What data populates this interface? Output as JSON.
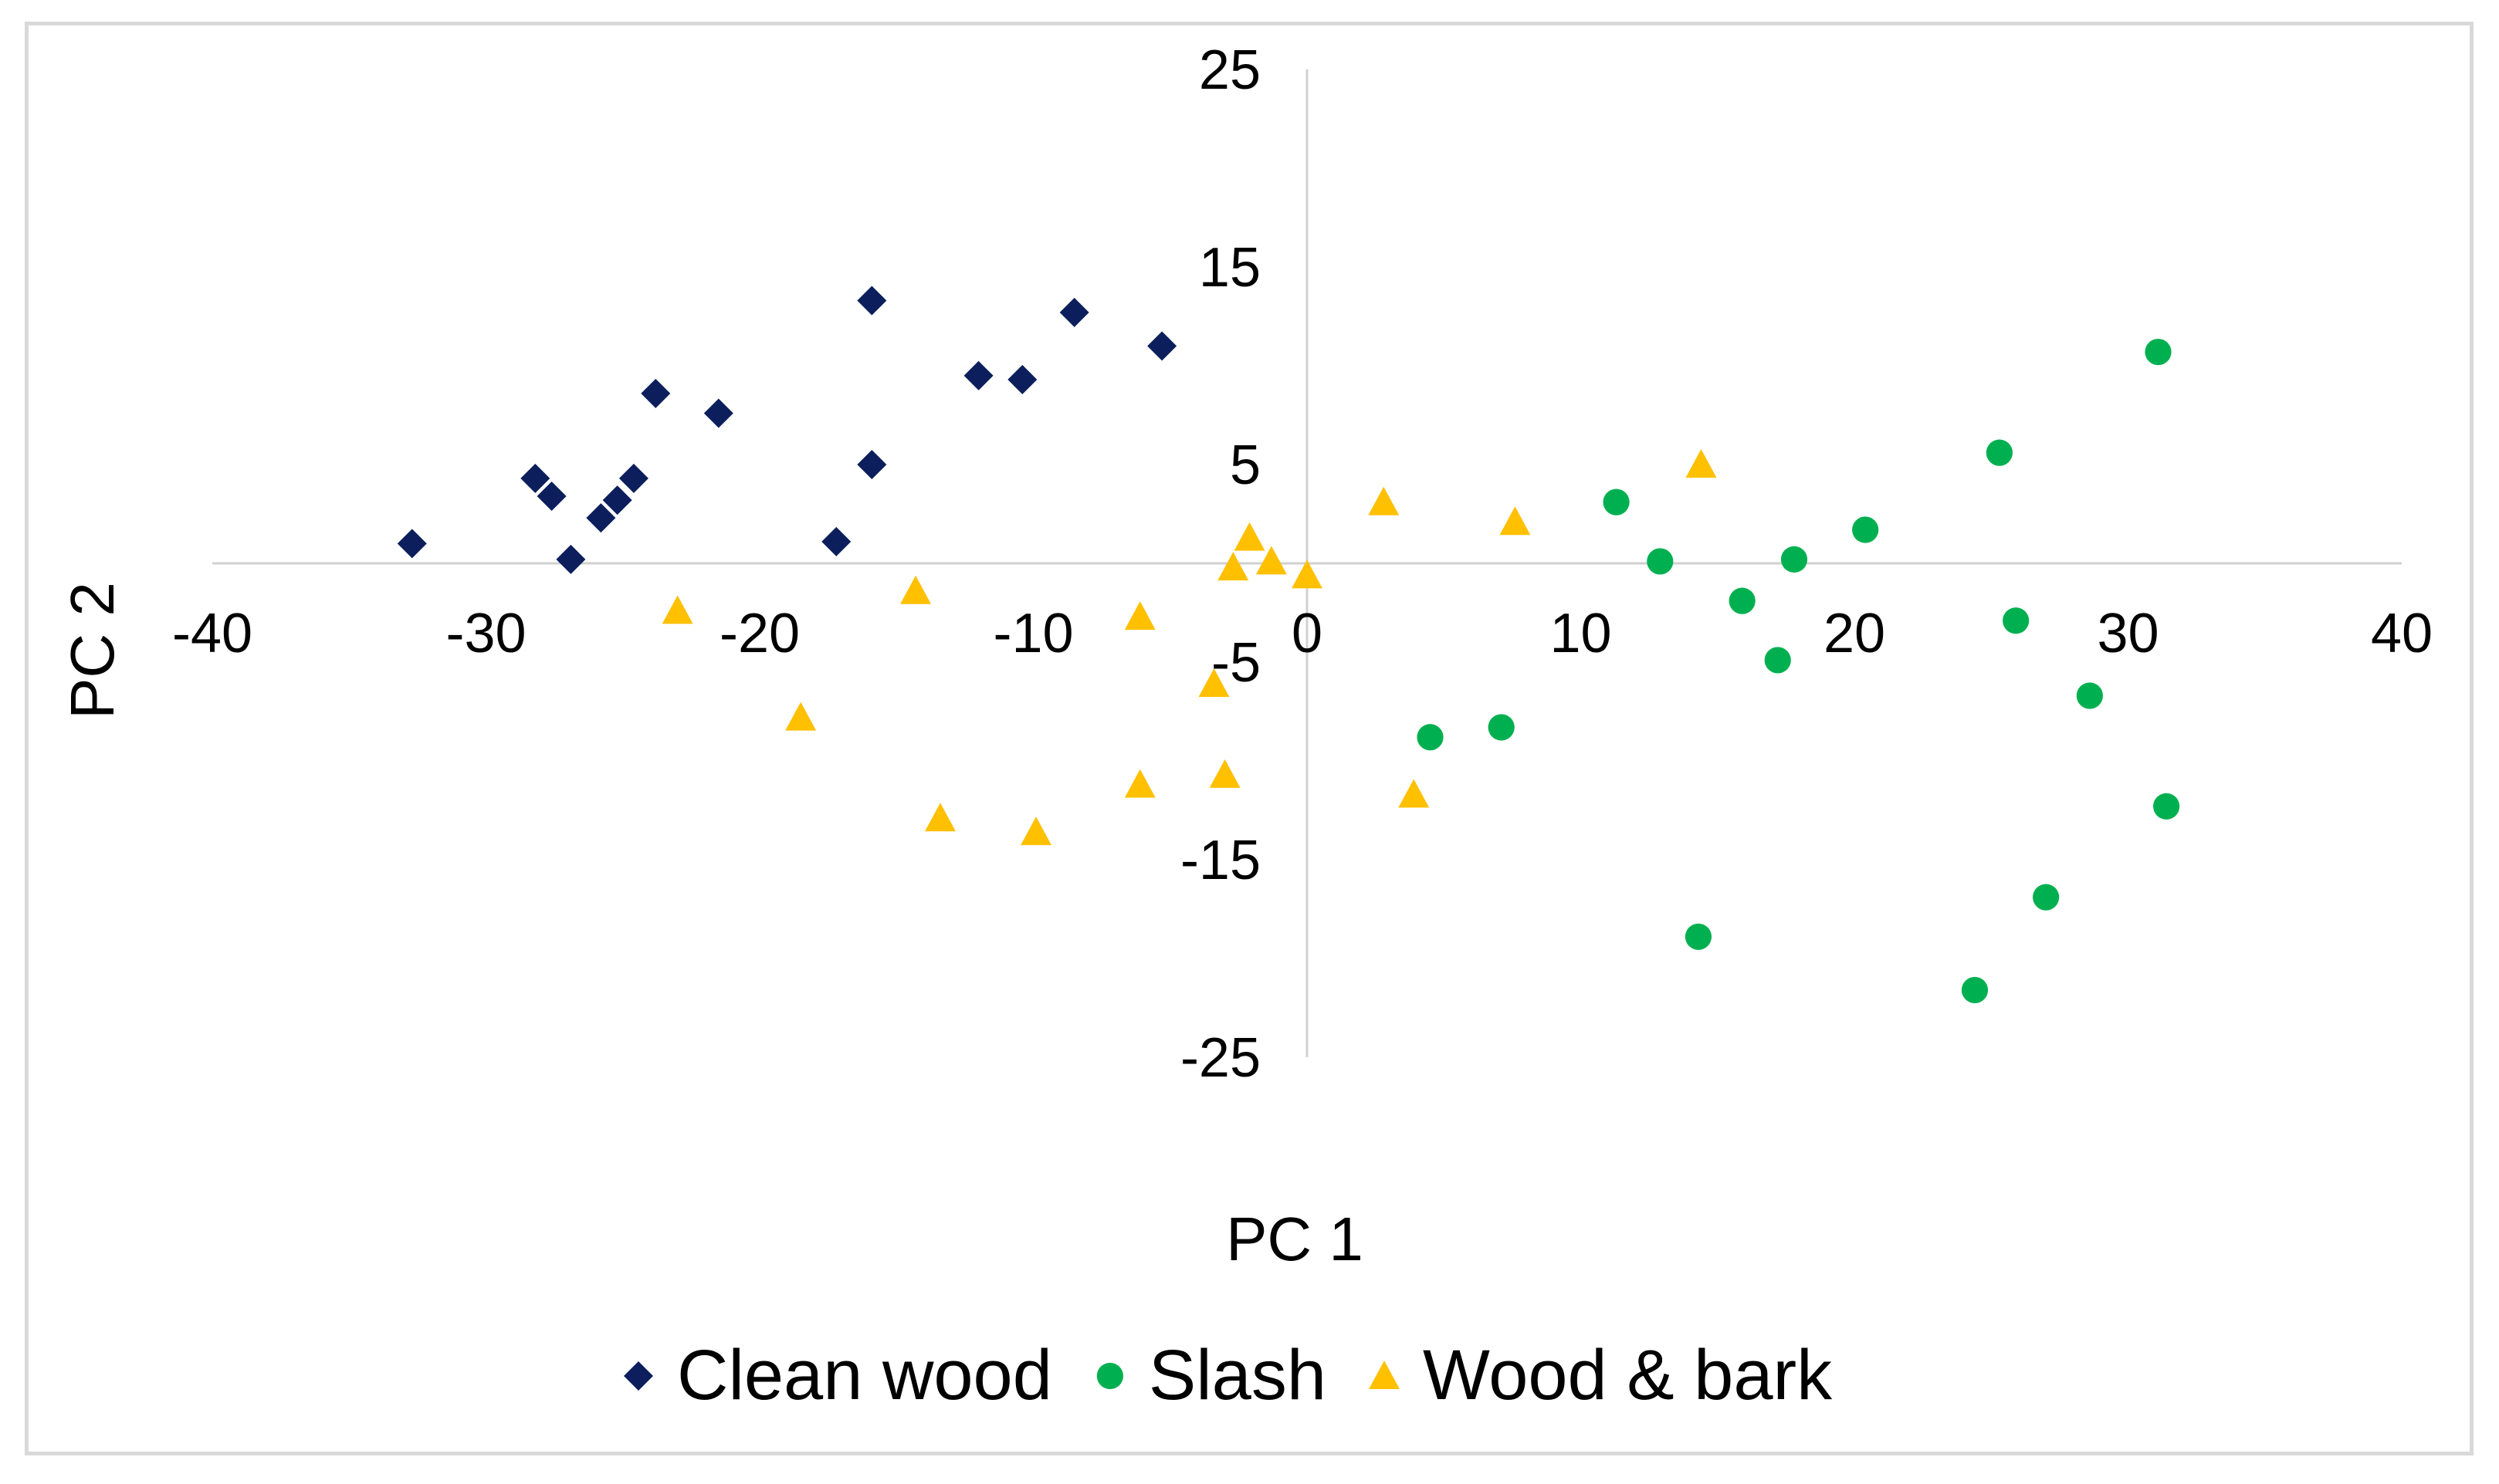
{
  "chart_data": {
    "type": "scatter",
    "title": "",
    "xlabel": "PC 1",
    "ylabel": "PC 2",
    "xlim": [
      -40,
      40
    ],
    "ylim": [
      -25,
      25
    ],
    "x_ticks": [
      "-40",
      "-30",
      "-20",
      "-10",
      "0",
      "10",
      "20",
      "30",
      "40"
    ],
    "x_tick_values": [
      -40,
      -30,
      -20,
      -10,
      0,
      10,
      20,
      30,
      40
    ],
    "y_ticks": [
      "25",
      "15",
      "5",
      "-5",
      "-15",
      "-25"
    ],
    "y_tick_values": [
      25,
      15,
      5,
      -5,
      -15,
      -25
    ],
    "grid": false,
    "legend_position": "bottom",
    "series": [
      {
        "name": "Clean wood",
        "marker": "diamond",
        "color": "#0c1f5c",
        "points": [
          [
            -32.7,
            1.0
          ],
          [
            -28.2,
            4.3
          ],
          [
            -27.6,
            3.4
          ],
          [
            -26.9,
            0.2
          ],
          [
            -25.8,
            2.3
          ],
          [
            -25.2,
            3.2
          ],
          [
            -24.6,
            4.3
          ],
          [
            -23.8,
            8.6
          ],
          [
            -21.5,
            7.6
          ],
          [
            -17.2,
            1.1
          ],
          [
            -15.9,
            13.3
          ],
          [
            -15.9,
            5.0
          ],
          [
            -12.0,
            9.5
          ],
          [
            -10.4,
            9.3
          ],
          [
            -8.5,
            12.7
          ],
          [
            -5.3,
            11.0
          ]
        ]
      },
      {
        "name": "Slash",
        "marker": "circle",
        "color": "#00b050",
        "points": [
          [
            4.5,
            -8.8
          ],
          [
            7.1,
            -8.3
          ],
          [
            11.3,
            3.1
          ],
          [
            12.9,
            0.1
          ],
          [
            14.3,
            -18.9
          ],
          [
            15.9,
            -1.9
          ],
          [
            17.2,
            -4.9
          ],
          [
            17.8,
            0.2
          ],
          [
            20.4,
            1.7
          ],
          [
            24.4,
            -21.6
          ],
          [
            25.3,
            5.6
          ],
          [
            25.9,
            -2.9
          ],
          [
            27.0,
            -16.9
          ],
          [
            28.6,
            -6.7
          ],
          [
            31.1,
            10.7
          ],
          [
            31.4,
            -12.3
          ]
        ]
      },
      {
        "name": "Wood & bark",
        "marker": "triangle",
        "color": "#ffc000",
        "points": [
          [
            -23.0,
            -2.4
          ],
          [
            -18.5,
            -7.8
          ],
          [
            -14.3,
            -1.4
          ],
          [
            -13.4,
            -12.9
          ],
          [
            -9.9,
            -13.6
          ],
          [
            -6.1,
            -2.7
          ],
          [
            -6.1,
            -11.2
          ],
          [
            -3.4,
            -6.1
          ],
          [
            -3.0,
            -10.7
          ],
          [
            -2.7,
            -0.2
          ],
          [
            -2.1,
            1.3
          ],
          [
            -1.3,
            0.1
          ],
          [
            0.0,
            -0.6
          ],
          [
            2.8,
            3.1
          ],
          [
            3.9,
            -11.7
          ],
          [
            7.6,
            2.1
          ],
          [
            14.4,
            5.0
          ]
        ]
      }
    ]
  }
}
